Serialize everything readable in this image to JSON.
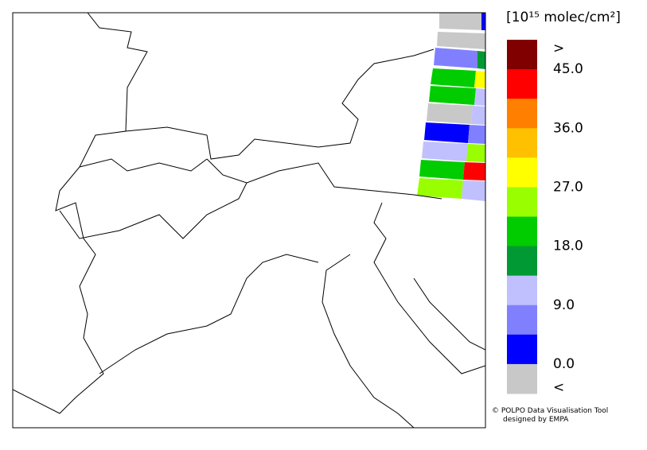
{
  "colorbar": {
    "title": "[10¹⁵ molec/cm²]",
    "colors": [
      "#800000",
      "#ff0000",
      "#ff8000",
      "#ffc000",
      "#ffff00",
      "#99ff00",
      "#00cc00",
      "#009933",
      "#c0c0ff",
      "#8080ff",
      "#0000ff",
      "#c8c8c8"
    ],
    "labels": [
      ">",
      "45.0",
      "36.0",
      "27.0",
      "18.0",
      "9.0",
      "0.0",
      "<"
    ]
  },
  "credits": [
    "© POLPO Data Visualisation Tool",
    "designed by EMPA"
  ]
}
